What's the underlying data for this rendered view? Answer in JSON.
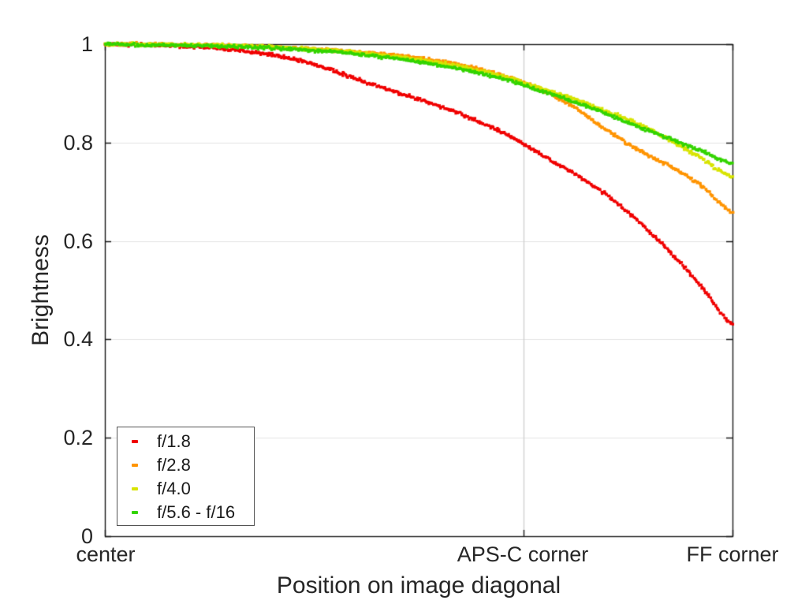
{
  "chart_data": {
    "type": "scatter",
    "title": "",
    "xlabel": "Position on image diagonal",
    "ylabel": "Brightness",
    "ylim": [
      0,
      1
    ],
    "xlim_labels": [
      "center",
      "FF corner"
    ],
    "grid": true,
    "legend_position": "lower-left",
    "ytick_values": [
      1,
      0.8,
      0.6,
      0.4,
      0.2,
      0
    ],
    "ytick_labels": [
      "1",
      "0.8",
      "0.6",
      "0.4",
      "0.2",
      "0"
    ],
    "xticks": [
      {
        "label": "center",
        "pos": 0.0
      },
      {
        "label": "APS-C corner",
        "pos": 0.667
      },
      {
        "label": "FF corner",
        "pos": 1.0
      }
    ],
    "x": [
      0,
      0.05,
      0.1,
      0.15,
      0.2,
      0.25,
      0.3,
      0.35,
      0.4,
      0.45,
      0.5,
      0.55,
      0.6,
      0.65,
      0.7,
      0.75,
      0.8,
      0.85,
      0.9,
      0.95,
      1.0
    ],
    "series": [
      {
        "name": "f/1.8",
        "color": "#f00000",
        "values": [
          1.0,
          0.999,
          0.997,
          0.994,
          0.989,
          0.981,
          0.97,
          0.952,
          0.93,
          0.908,
          0.888,
          0.866,
          0.84,
          0.81,
          0.772,
          0.735,
          0.693,
          0.64,
          0.578,
          0.508,
          0.43
        ]
      },
      {
        "name": "f/2.8",
        "color": "#ff9400",
        "values": [
          1.0,
          1.0,
          0.999,
          0.998,
          0.997,
          0.995,
          0.992,
          0.989,
          0.985,
          0.979,
          0.972,
          0.962,
          0.948,
          0.93,
          0.905,
          0.87,
          0.825,
          0.785,
          0.752,
          0.713,
          0.658
        ]
      },
      {
        "name": "f/4.0",
        "color": "#d8e400",
        "values": [
          1.0,
          1.0,
          0.999,
          0.998,
          0.997,
          0.995,
          0.992,
          0.988,
          0.983,
          0.976,
          0.968,
          0.958,
          0.945,
          0.929,
          0.908,
          0.888,
          0.863,
          0.838,
          0.805,
          0.768,
          0.73
        ]
      },
      {
        "name": "f/5.6 - f/16",
        "color": "#33d400",
        "values": [
          1.0,
          0.999,
          0.998,
          0.997,
          0.995,
          0.993,
          0.99,
          0.986,
          0.98,
          0.973,
          0.964,
          0.953,
          0.94,
          0.924,
          0.903,
          0.882,
          0.858,
          0.832,
          0.808,
          0.783,
          0.757
        ]
      }
    ],
    "colors": {
      "axis": "#1a1a1a",
      "text": "#262626",
      "grid_horizontal": "#e4e4e4",
      "grid_vertical": "#cccccc",
      "background": "#ffffff"
    }
  }
}
